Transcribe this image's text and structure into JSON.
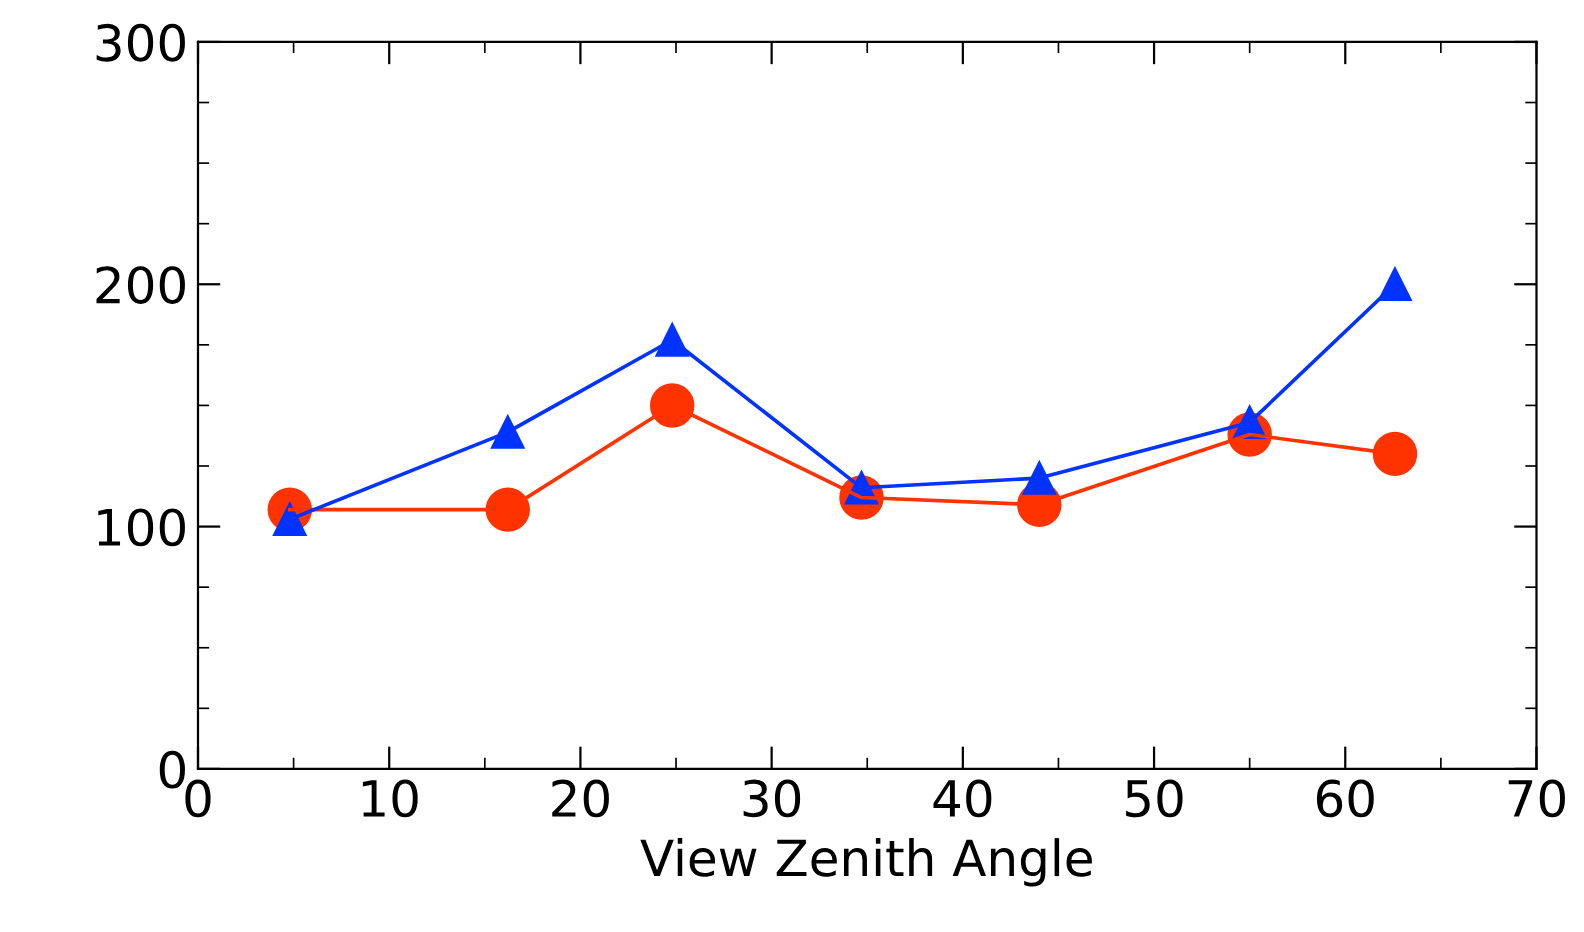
{
  "chart_data": {
    "type": "line",
    "xlabel": "View Zenith Angle",
    "x": [
      4.8,
      16.2,
      24.8,
      34.7,
      44,
      55,
      62.6
    ],
    "series": [
      {
        "color": "#ff3300",
        "marker": "circle",
        "values": [
          107,
          107,
          150,
          112,
          109,
          138,
          130
        ]
      },
      {
        "color": "#0033ff",
        "marker": "triangle",
        "values": [
          103,
          139,
          177,
          116,
          120,
          143,
          200
        ]
      }
    ],
    "xlim": [
      0,
      70
    ],
    "xticks": [
      0,
      10,
      20,
      30,
      40,
      50,
      60,
      70
    ],
    "ylim": [
      0,
      300
    ],
    "yticks": [
      0,
      100,
      200,
      300
    ],
    "grid": false,
    "legend": false,
    "line_style": "solid"
  }
}
